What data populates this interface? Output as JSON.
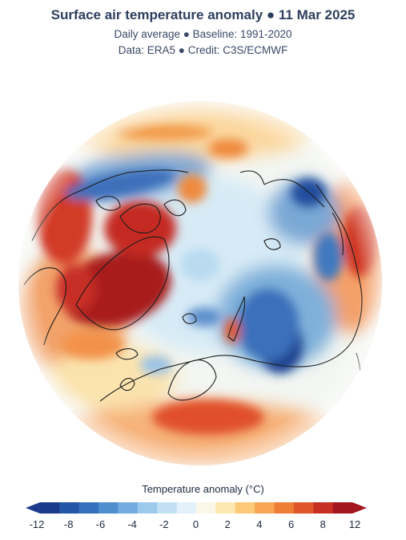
{
  "header": {
    "title": "Surface air temperature anomaly ● 11 Mar 2025",
    "subtitle_1": "Daily average ● Baseline: 1991-2020",
    "subtitle_2": "Data: ERA5 ● Credit: C3S/ECMWF"
  },
  "legend": {
    "title": "Temperature anomaly (°C)",
    "min": -12,
    "max": 12,
    "colors": [
      "#1b3a8c",
      "#2456a8",
      "#3470bd",
      "#4f8fcf",
      "#74acdf",
      "#9ccaec",
      "#c2e0f4",
      "#e2f1fa",
      "#fbf7e8",
      "#fde7b0",
      "#fcc979",
      "#f7a552",
      "#ee7d36",
      "#e0552a",
      "#c82f24",
      "#a4161d"
    ],
    "ticks": [
      {
        "label": "-12",
        "value": -12
      },
      {
        "label": "-8",
        "value": -8
      },
      {
        "label": "-6",
        "value": -6
      },
      {
        "label": "-4",
        "value": -4
      },
      {
        "label": "-2",
        "value": -2
      },
      {
        "label": "0",
        "value": 0
      },
      {
        "label": "2",
        "value": 2
      },
      {
        "label": "4",
        "value": 4
      },
      {
        "label": "6",
        "value": 6
      },
      {
        "label": "8",
        "value": 8
      },
      {
        "label": "12",
        "value": 12
      }
    ]
  }
}
